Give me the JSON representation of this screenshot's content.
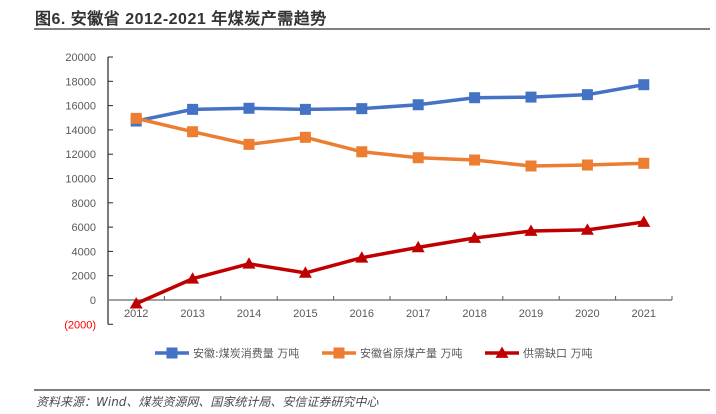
{
  "title": "图6. 安徽省 2012-2021 年煤炭产需趋势",
  "footer": "资料来源：Wind、煤炭资源网、国家统计局、安信证券研究中心",
  "chart_data": {
    "type": "line",
    "title": "图6. 安徽省 2012-2021 年煤炭产需趋势",
    "xlabel": "",
    "ylabel": "",
    "categories": [
      "2012",
      "2013",
      "2014",
      "2015",
      "2016",
      "2017",
      "2018",
      "2019",
      "2020",
      "2021"
    ],
    "ylim": [
      -2000,
      20000
    ],
    "yticks": [
      -2000,
      0,
      2000,
      4000,
      6000,
      8000,
      10000,
      12000,
      14000,
      16000,
      18000,
      20000
    ],
    "ytick_labels": [
      "(2000)",
      "0",
      "2000",
      "4000",
      "6000",
      "8000",
      "10000",
      "12000",
      "14000",
      "16000",
      "18000",
      "20000"
    ],
    "grid": false,
    "legend_position": "bottom",
    "series": [
      {
        "name": "安徽:煤炭消费量 万吨",
        "color": "#4472c4",
        "marker": "square",
        "values": [
          14730,
          15690,
          15780,
          15690,
          15750,
          16070,
          16650,
          16700,
          16900,
          17720
        ]
      },
      {
        "name": "安徽省原煤产量 万吨",
        "color": "#ed7d31",
        "marker": "square",
        "values": [
          14950,
          13850,
          12810,
          13390,
          12200,
          11710,
          11520,
          11030,
          11110,
          11250
        ]
      },
      {
        "name": "供需缺口 万吨",
        "color": "#c00000",
        "marker": "triangle",
        "values": [
          -300,
          1750,
          2980,
          2230,
          3480,
          4330,
          5100,
          5680,
          5770,
          6420
        ]
      }
    ]
  }
}
